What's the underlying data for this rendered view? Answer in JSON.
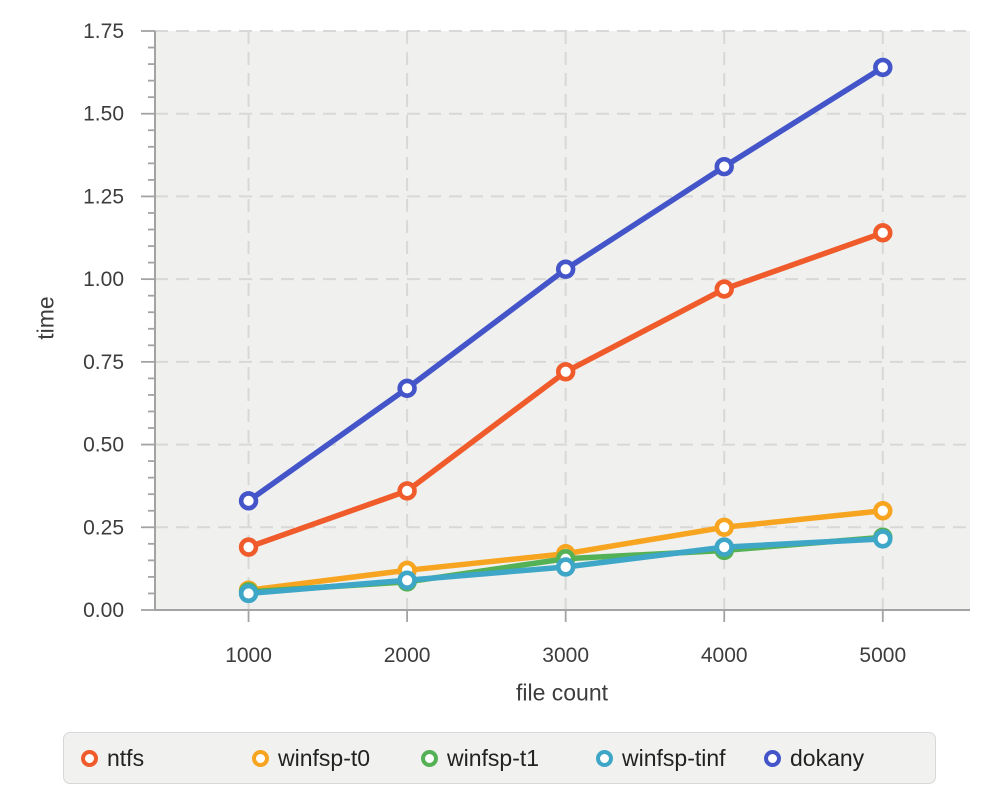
{
  "figure": {
    "background": "#ffffff",
    "plot_background": "#f0f0ee",
    "grid_color": "#d8d8d6",
    "axis_color": "#a3a3a3",
    "tick_label_color": "#3d3d3d",
    "legend_background": "#f1f1f0",
    "legend_border": "#d8d8d8"
  },
  "chart_data": {
    "type": "line",
    "title": "",
    "xlabel": "file count",
    "ylabel": "time",
    "grid": true,
    "legend_position": "bottom",
    "x": [
      1000,
      2000,
      3000,
      4000,
      5000
    ],
    "xtick_labels": [
      "1000",
      "2000",
      "3000",
      "4000",
      "5000"
    ],
    "xlim": [
      410,
      5550
    ],
    "ylim": [
      0,
      1.75
    ],
    "yticks": [
      0,
      0.25,
      0.5,
      0.75,
      1.0,
      1.25,
      1.5,
      1.75
    ],
    "ytick_labels": [
      "0.00",
      "0.25",
      "0.50",
      "0.75",
      "1.00",
      "1.25",
      "1.50",
      "1.75"
    ],
    "minor_ytick_step": 0.05,
    "series": [
      {
        "name": "ntfs",
        "color": "#f05b2b",
        "values": [
          0.19,
          0.36,
          0.72,
          0.97,
          1.14
        ]
      },
      {
        "name": "winfsp-t0",
        "color": "#f7a521",
        "values": [
          0.06,
          0.12,
          0.17,
          0.25,
          0.3
        ]
      },
      {
        "name": "winfsp-t1",
        "color": "#55b155",
        "values": [
          0.055,
          0.085,
          0.155,
          0.18,
          0.22
        ]
      },
      {
        "name": "winfsp-tinf",
        "color": "#3ea6c6",
        "values": [
          0.05,
          0.09,
          0.13,
          0.19,
          0.215
        ]
      },
      {
        "name": "dokany",
        "color": "#4355c9",
        "values": [
          0.33,
          0.67,
          1.03,
          1.34,
          1.64
        ]
      }
    ]
  }
}
